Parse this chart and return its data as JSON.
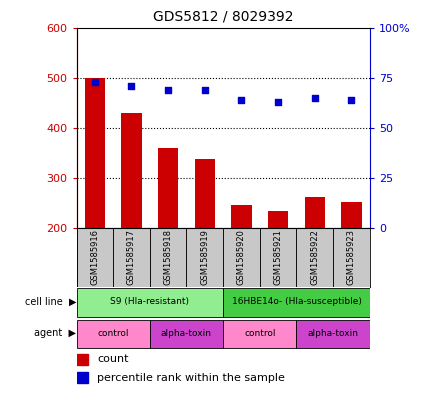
{
  "title": "GDS5812 / 8029392",
  "samples": [
    "GSM1585916",
    "GSM1585917",
    "GSM1585918",
    "GSM1585919",
    "GSM1585920",
    "GSM1585921",
    "GSM1585922",
    "GSM1585923"
  ],
  "counts": [
    500,
    430,
    360,
    337,
    245,
    233,
    262,
    252
  ],
  "percentiles": [
    73,
    71,
    69,
    69,
    64,
    63,
    65,
    64
  ],
  "ylim_left": [
    200,
    600
  ],
  "ylim_right": [
    0,
    100
  ],
  "yticks_left": [
    200,
    300,
    400,
    500,
    600
  ],
  "yticks_right": [
    0,
    25,
    50,
    75,
    100
  ],
  "bar_color": "#cc0000",
  "dot_color": "#0000cc",
  "cell_line_groups": [
    {
      "label": "S9 (Hla-resistant)",
      "start": 0,
      "end": 3,
      "color": "#90ee90"
    },
    {
      "label": "16HBE14o- (Hla-susceptible)",
      "start": 4,
      "end": 7,
      "color": "#44cc44"
    }
  ],
  "agent_groups": [
    {
      "label": "control",
      "start": 0,
      "end": 1,
      "color": "#ff88cc"
    },
    {
      "label": "alpha-toxin",
      "start": 2,
      "end": 3,
      "color": "#cc44cc"
    },
    {
      "label": "control",
      "start": 4,
      "end": 5,
      "color": "#ff88cc"
    },
    {
      "label": "alpha-toxin",
      "start": 6,
      "end": 7,
      "color": "#cc44cc"
    }
  ],
  "sample_bg_color": "#c8c8c8",
  "legend_count_color": "#cc0000",
  "legend_percentile_color": "#0000cc"
}
